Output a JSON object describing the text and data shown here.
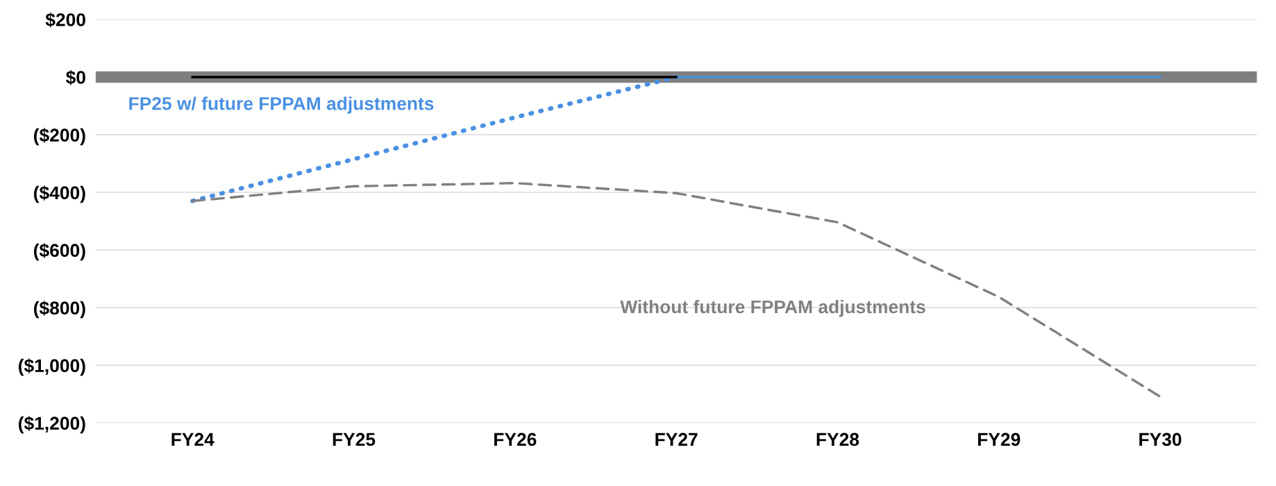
{
  "chart_data": {
    "type": "line",
    "categories": [
      "FY24",
      "FY25",
      "FY26",
      "FY27",
      "FY28",
      "FY29",
      "FY30"
    ],
    "series": [
      {
        "name": "FP25 w/ future FPPAM adjustments",
        "color": "#4a90e2",
        "line_style": "dotted",
        "values": [
          -430,
          -285,
          -140,
          0,
          null,
          null,
          null
        ]
      },
      {
        "color": "#4a90e2",
        "line_style": "solid",
        "values": [
          null,
          null,
          null,
          0,
          0,
          0,
          0
        ]
      },
      {
        "color": "#000000",
        "line_style": "solid",
        "values": [
          0,
          0,
          0,
          0,
          null,
          null,
          null
        ]
      },
      {
        "name": "Without future FPPAM adjustments",
        "color": "#808080",
        "line_style": "dashed",
        "values": [
          -430,
          -379,
          -368,
          -403,
          -504,
          -763,
          -1109
        ]
      }
    ],
    "ylim": [
      -1200,
      200
    ],
    "yticks": [
      {
        "value": 200,
        "label": "$200"
      },
      {
        "value": 0,
        "label": "$0"
      },
      {
        "value": -200,
        "label": "($200)"
      },
      {
        "value": -400,
        "label": "($400)"
      },
      {
        "value": -600,
        "label": "($600)"
      },
      {
        "value": -800,
        "label": "($800)"
      },
      {
        "value": -1000,
        "label": "($1,000)"
      },
      {
        "value": -1200,
        "label": "($1,200)"
      }
    ],
    "ref_lines": [
      {
        "axis": "y",
        "value": 0,
        "color": "#7f7f7f"
      }
    ],
    "grid": "y",
    "marker": "none",
    "legend": false
  }
}
